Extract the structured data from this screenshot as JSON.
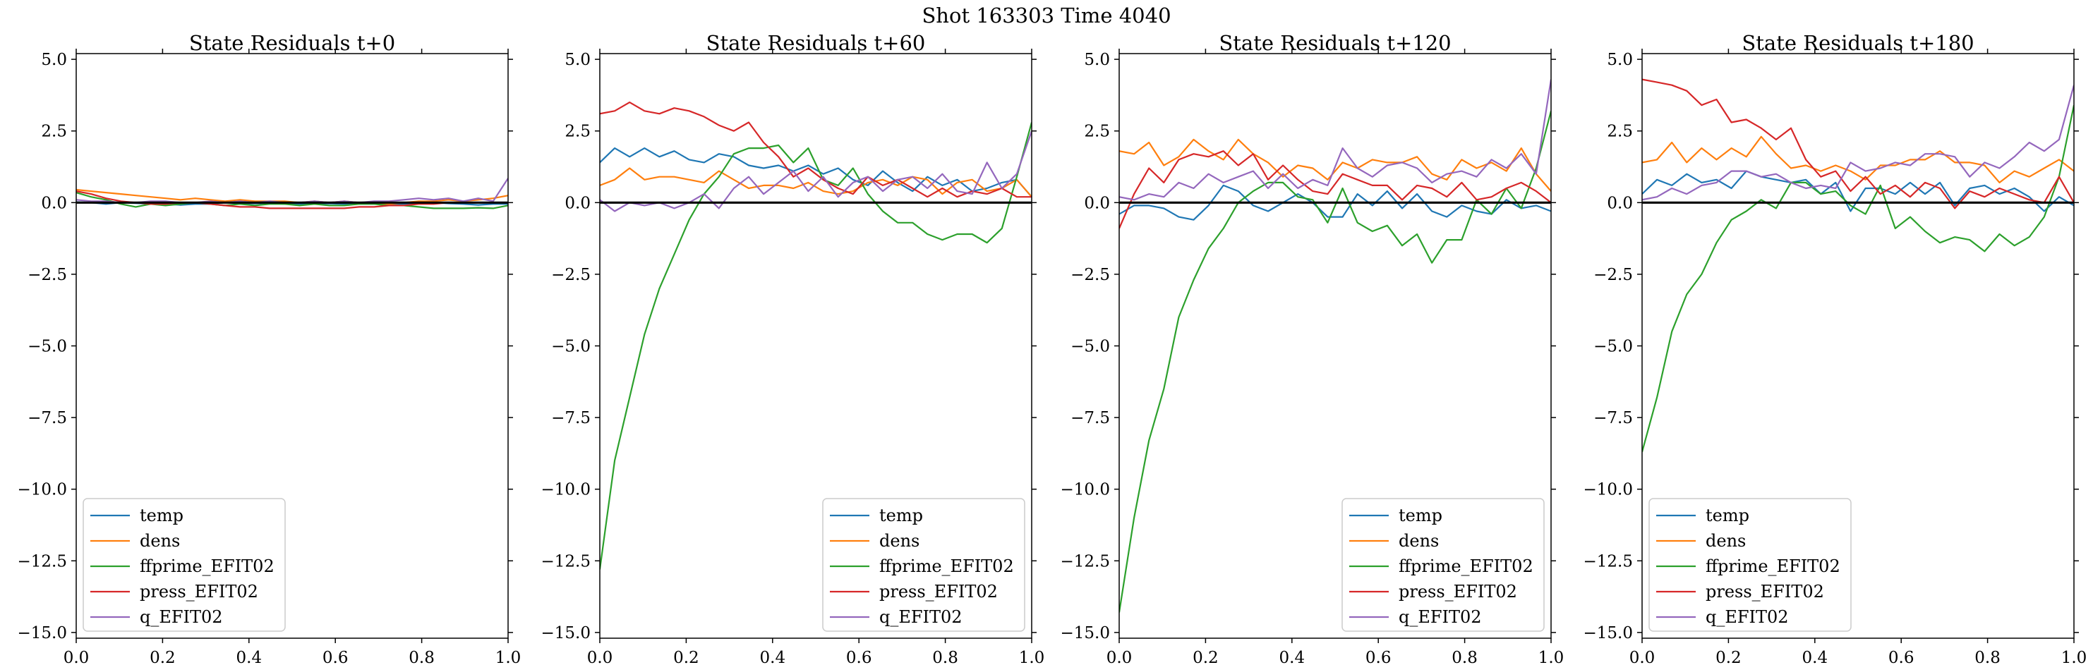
{
  "figure": {
    "suptitle": "Shot 163303   Time 4040"
  },
  "colors": {
    "temp": "#1f77b4",
    "dens": "#ff7f0e",
    "ffprime_EFIT02": "#2ca02c",
    "press_EFIT02": "#d62728",
    "q_EFIT02": "#9467bd",
    "zero_line": "#000000"
  },
  "chart_data": [
    {
      "type": "line",
      "title": "State Residuals t+0",
      "xlabel": "",
      "ylabel": "",
      "xlim": [
        0,
        1
      ],
      "ylim": [
        -15.2,
        5.2
      ],
      "xticks": [
        0.0,
        0.2,
        0.4,
        0.6,
        0.8,
        1.0
      ],
      "xtick_labels": [
        "0.0",
        "0.2",
        "0.4",
        "0.6",
        "0.8",
        "1.0"
      ],
      "yticks": [
        5.0,
        2.5,
        0.0,
        -2.5,
        -5.0,
        -7.5,
        -10.0,
        -12.5,
        -15.0
      ],
      "ytick_labels": [
        "5.0",
        "2.5",
        "0.0",
        "−2.5",
        "−5.0",
        "−7.5",
        "−10.0",
        "−12.5",
        "−15.0"
      ],
      "legend": "lower-left",
      "zero_line": 0,
      "series": [
        {
          "name": "temp",
          "values": [
            0.02,
            0.0,
            -0.05,
            0.0,
            -0.02,
            -0.05,
            -0.05,
            -0.08,
            -0.05,
            -0.05,
            0.0,
            -0.03,
            -0.03,
            -0.02,
            -0.05,
            -0.05,
            -0.05,
            -0.03,
            -0.05,
            -0.05,
            -0.05,
            -0.05,
            -0.05,
            -0.03,
            0.0,
            -0.03,
            -0.05,
            -0.08,
            -0.05,
            -0.05
          ]
        },
        {
          "name": "dens",
          "values": [
            0.45,
            0.4,
            0.35,
            0.3,
            0.25,
            0.2,
            0.15,
            0.1,
            0.15,
            0.1,
            0.05,
            0.1,
            0.05,
            0.05,
            0.05,
            0.0,
            0.05,
            0.0,
            0.05,
            0.0,
            0.0,
            -0.05,
            0.0,
            0.05,
            0.05,
            0.1,
            0.05,
            0.1,
            0.15,
            0.25
          ]
        },
        {
          "name": "ffprime_EFIT02",
          "values": [
            0.35,
            0.2,
            0.1,
            -0.05,
            -0.15,
            -0.05,
            -0.1,
            -0.05,
            0.0,
            -0.05,
            -0.1,
            -0.05,
            -0.1,
            -0.05,
            -0.05,
            -0.1,
            -0.05,
            -0.1,
            -0.1,
            -0.05,
            -0.05,
            -0.1,
            -0.1,
            -0.15,
            -0.2,
            -0.2,
            -0.2,
            -0.18,
            -0.2,
            -0.1
          ]
        },
        {
          "name": "press_EFIT02",
          "values": [
            0.4,
            0.3,
            0.15,
            0.05,
            0.0,
            -0.05,
            -0.05,
            0.0,
            0.0,
            -0.05,
            -0.1,
            -0.15,
            -0.15,
            -0.2,
            -0.2,
            -0.2,
            -0.2,
            -0.2,
            -0.2,
            -0.15,
            -0.15,
            -0.1,
            -0.1,
            -0.05,
            -0.05,
            0.0,
            0.0,
            0.0,
            0.0,
            0.0
          ]
        },
        {
          "name": "q_EFIT02",
          "values": [
            0.1,
            0.05,
            0.05,
            0.0,
            0.0,
            0.05,
            0.05,
            0.0,
            0.0,
            0.05,
            0.0,
            0.05,
            0.0,
            0.05,
            0.0,
            0.0,
            0.05,
            0.0,
            0.05,
            0.0,
            0.05,
            0.05,
            0.1,
            0.15,
            0.1,
            0.15,
            0.05,
            0.15,
            0.05,
            0.85
          ]
        }
      ]
    },
    {
      "type": "line",
      "title": "State Residuals t+60",
      "xlabel": "",
      "ylabel": "",
      "xlim": [
        0,
        1
      ],
      "ylim": [
        -15.2,
        5.2
      ],
      "xticks": [
        0.0,
        0.2,
        0.4,
        0.6,
        0.8,
        1.0
      ],
      "xtick_labels": [
        "0.0",
        "0.2",
        "0.4",
        "0.6",
        "0.8",
        "1.0"
      ],
      "yticks": [
        5.0,
        2.5,
        0.0,
        -2.5,
        -5.0,
        -7.5,
        -10.0,
        -12.5,
        -15.0
      ],
      "ytick_labels": [
        "5.0",
        "2.5",
        "0.0",
        "−2.5",
        "−5.0",
        "−7.5",
        "−10.0",
        "−12.5",
        "−15.0"
      ],
      "legend": "lower-right",
      "zero_line": 0,
      "series": [
        {
          "name": "temp",
          "values": [
            1.4,
            1.9,
            1.6,
            1.9,
            1.6,
            1.8,
            1.5,
            1.4,
            1.7,
            1.6,
            1.3,
            1.2,
            1.3,
            1.1,
            1.3,
            1.0,
            1.2,
            0.8,
            0.6,
            1.1,
            0.7,
            0.4,
            0.9,
            0.6,
            0.8,
            0.4,
            0.5,
            0.7,
            0.8,
            0.2
          ]
        },
        {
          "name": "dens",
          "values": [
            0.6,
            0.8,
            1.2,
            0.8,
            0.9,
            0.9,
            0.8,
            0.7,
            1.1,
            0.8,
            0.5,
            0.6,
            0.6,
            0.5,
            0.7,
            0.4,
            0.3,
            0.4,
            0.7,
            0.8,
            0.6,
            0.9,
            0.8,
            0.3,
            0.7,
            0.8,
            0.4,
            0.5,
            0.8,
            0.2
          ]
        },
        {
          "name": "ffprime_EFIT02",
          "values": [
            -12.8,
            -9.0,
            -6.8,
            -4.6,
            -3.0,
            -1.8,
            -0.6,
            0.3,
            0.9,
            1.7,
            1.9,
            1.9,
            2.0,
            1.4,
            1.9,
            0.8,
            0.6,
            1.2,
            0.3,
            -0.3,
            -0.7,
            -0.7,
            -1.1,
            -1.3,
            -1.1,
            -1.1,
            -1.4,
            -0.9,
            0.9,
            2.8
          ]
        },
        {
          "name": "press_EFIT02",
          "values": [
            3.1,
            3.2,
            3.5,
            3.2,
            3.1,
            3.3,
            3.2,
            3.0,
            2.7,
            2.5,
            2.8,
            2.1,
            1.6,
            0.9,
            1.2,
            0.8,
            0.5,
            0.3,
            0.9,
            0.6,
            0.8,
            0.5,
            0.2,
            0.5,
            0.2,
            0.4,
            0.3,
            0.5,
            0.2,
            0.2
          ]
        },
        {
          "name": "q_EFIT02",
          "values": [
            0.1,
            -0.3,
            0.0,
            -0.1,
            0.0,
            -0.2,
            0.0,
            0.3,
            -0.2,
            0.5,
            0.9,
            0.3,
            0.7,
            1.1,
            0.4,
            0.9,
            0.2,
            0.7,
            0.9,
            0.4,
            0.8,
            0.9,
            0.5,
            1.0,
            0.4,
            0.3,
            1.4,
            0.5,
            1.0,
            2.5
          ]
        }
      ]
    },
    {
      "type": "line",
      "title": "State Residuals t+120",
      "xlabel": "",
      "ylabel": "",
      "xlim": [
        0,
        1
      ],
      "ylim": [
        -15.2,
        5.2
      ],
      "xticks": [
        0.0,
        0.2,
        0.4,
        0.6,
        0.8,
        1.0
      ],
      "xtick_labels": [
        "0.0",
        "0.2",
        "0.4",
        "0.6",
        "0.8",
        "1.0"
      ],
      "yticks": [
        5.0,
        2.5,
        0.0,
        -2.5,
        -5.0,
        -7.5,
        -10.0,
        -12.5,
        -15.0
      ],
      "ytick_labels": [
        "5.0",
        "2.5",
        "0.0",
        "−2.5",
        "−5.0",
        "−7.5",
        "−10.0",
        "−12.5",
        "−15.0"
      ],
      "legend": "lower-right",
      "zero_line": 0,
      "series": [
        {
          "name": "temp",
          "values": [
            -0.4,
            -0.1,
            -0.1,
            -0.2,
            -0.5,
            -0.6,
            -0.1,
            0.6,
            0.4,
            -0.1,
            -0.3,
            0.0,
            0.3,
            0.0,
            -0.5,
            -0.5,
            0.3,
            -0.1,
            0.4,
            -0.2,
            0.3,
            -0.3,
            -0.5,
            -0.1,
            -0.3,
            -0.4,
            0.1,
            -0.2,
            -0.1,
            -0.3
          ]
        },
        {
          "name": "dens",
          "values": [
            1.8,
            1.7,
            2.1,
            1.3,
            1.6,
            2.2,
            1.8,
            1.5,
            2.2,
            1.7,
            1.4,
            0.9,
            1.3,
            1.2,
            0.8,
            1.4,
            1.2,
            1.5,
            1.4,
            1.4,
            1.6,
            1.0,
            0.8,
            1.5,
            1.2,
            1.4,
            1.1,
            1.9,
            1.0,
            0.4
          ]
        },
        {
          "name": "ffprime_EFIT02",
          "values": [
            -14.3,
            -11.0,
            -8.3,
            -6.5,
            -4.0,
            -2.7,
            -1.6,
            -0.9,
            0.0,
            0.4,
            0.7,
            0.7,
            0.2,
            0.1,
            -0.7,
            0.5,
            -0.7,
            -1.0,
            -0.8,
            -1.5,
            -1.1,
            -2.1,
            -1.3,
            -1.3,
            0.1,
            -0.4,
            0.5,
            -0.2,
            1.2,
            3.2
          ]
        },
        {
          "name": "press_EFIT02",
          "values": [
            -0.9,
            0.3,
            1.2,
            0.7,
            1.5,
            1.7,
            1.6,
            1.8,
            1.3,
            1.7,
            0.8,
            1.3,
            0.8,
            0.4,
            0.3,
            1.0,
            0.8,
            0.6,
            0.6,
            0.1,
            0.6,
            0.5,
            0.2,
            0.7,
            0.1,
            0.2,
            0.5,
            0.7,
            0.4,
            0.0
          ]
        },
        {
          "name": "q_EFIT02",
          "values": [
            0.2,
            0.1,
            0.3,
            0.2,
            0.7,
            0.5,
            1.0,
            0.7,
            0.9,
            1.1,
            0.5,
            1.0,
            0.5,
            0.8,
            0.6,
            1.9,
            1.2,
            0.9,
            1.3,
            1.4,
            1.2,
            0.7,
            1.0,
            1.1,
            0.9,
            1.5,
            1.2,
            1.7,
            1.0,
            4.3
          ]
        }
      ]
    },
    {
      "type": "line",
      "title": "State Residuals t+180",
      "xlabel": "",
      "ylabel": "",
      "xlim": [
        0,
        1
      ],
      "ylim": [
        -15.2,
        5.2
      ],
      "xticks": [
        0.0,
        0.2,
        0.4,
        0.6,
        0.8,
        1.0
      ],
      "xtick_labels": [
        "0.0",
        "0.2",
        "0.4",
        "0.6",
        "0.8",
        "1.0"
      ],
      "yticks": [
        5.0,
        2.5,
        0.0,
        -2.5,
        -5.0,
        -7.5,
        -10.0,
        -12.5,
        -15.0
      ],
      "ytick_labels": [
        "5.0",
        "2.5",
        "0.0",
        "−2.5",
        "−5.0",
        "−7.5",
        "−10.0",
        "−12.5",
        "−15.0"
      ],
      "legend": "lower-left",
      "zero_line": 0,
      "series": [
        {
          "name": "temp",
          "values": [
            0.3,
            0.8,
            0.6,
            1.0,
            0.7,
            0.8,
            0.5,
            1.1,
            0.9,
            0.8,
            0.7,
            0.8,
            0.3,
            0.7,
            -0.3,
            0.5,
            0.5,
            0.3,
            0.7,
            0.3,
            0.7,
            -0.1,
            0.5,
            0.6,
            0.3,
            0.5,
            0.2,
            -0.3,
            0.2,
            -0.1
          ]
        },
        {
          "name": "dens",
          "values": [
            1.4,
            1.5,
            2.1,
            1.4,
            1.9,
            1.5,
            1.9,
            1.6,
            2.3,
            1.7,
            1.2,
            1.3,
            1.1,
            1.3,
            1.1,
            0.8,
            1.3,
            1.3,
            1.5,
            1.5,
            1.8,
            1.4,
            1.4,
            1.3,
            0.7,
            1.1,
            0.9,
            1.2,
            1.5,
            1.1
          ]
        },
        {
          "name": "ffprime_EFIT02",
          "values": [
            -8.7,
            -6.8,
            -4.5,
            -3.2,
            -2.5,
            -1.4,
            -0.6,
            -0.3,
            0.1,
            -0.2,
            0.7,
            0.7,
            0.3,
            0.4,
            -0.1,
            -0.4,
            0.6,
            -0.9,
            -0.5,
            -1.0,
            -1.4,
            -1.2,
            -1.3,
            -1.7,
            -1.1,
            -1.5,
            -1.2,
            -0.5,
            0.9,
            3.4
          ]
        },
        {
          "name": "press_EFIT02",
          "values": [
            4.3,
            4.2,
            4.1,
            3.9,
            3.4,
            3.6,
            2.8,
            2.9,
            2.6,
            2.2,
            2.6,
            1.5,
            0.9,
            1.1,
            0.4,
            0.9,
            0.3,
            0.6,
            0.2,
            0.7,
            0.5,
            -0.2,
            0.4,
            0.2,
            0.5,
            0.3,
            0.1,
            0.0,
            0.9,
            0.0
          ]
        },
        {
          "name": "q_EFIT02",
          "values": [
            0.1,
            0.2,
            0.5,
            0.3,
            0.6,
            0.7,
            1.1,
            1.1,
            0.9,
            1.0,
            0.7,
            0.5,
            0.6,
            0.5,
            1.4,
            1.1,
            1.2,
            1.4,
            1.3,
            1.7,
            1.7,
            1.6,
            0.9,
            1.4,
            1.2,
            1.6,
            2.1,
            1.8,
            2.2,
            4.1
          ]
        }
      ]
    }
  ]
}
